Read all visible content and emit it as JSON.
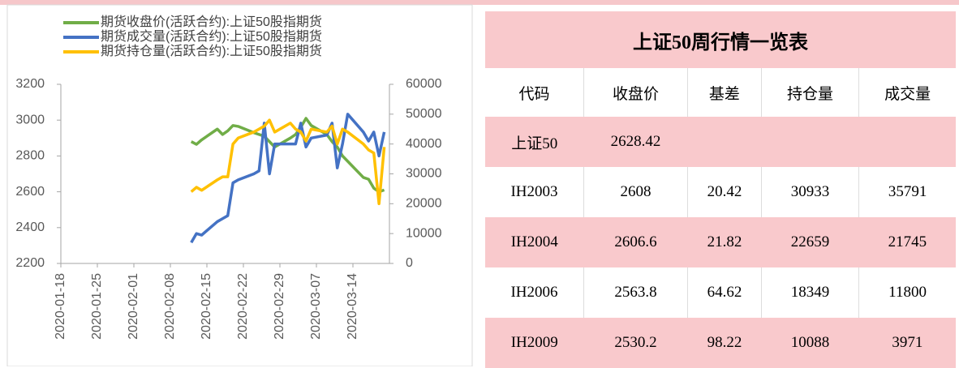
{
  "chart_data": {
    "type": "line",
    "x": [
      "2020-02-12",
      "2020-02-13",
      "2020-02-14",
      "2020-02-17",
      "2020-02-18",
      "2020-02-19",
      "2020-02-20",
      "2020-02-21",
      "2020-02-24",
      "2020-02-25",
      "2020-02-26",
      "2020-02-27",
      "2020-02-28",
      "2020-03-02",
      "2020-03-03",
      "2020-03-04",
      "2020-03-05",
      "2020-03-06",
      "2020-03-09",
      "2020-03-10",
      "2020-03-11",
      "2020-03-12",
      "2020-03-13",
      "2020-03-16",
      "2020-03-17",
      "2020-03-18",
      "2020-03-19",
      "2020-03-20"
    ],
    "series": [
      {
        "name": "期货收盘价(活跃合约):上证50股指期货",
        "color": "#70ad47",
        "axis": "y",
        "values": [
          2880,
          2865,
          2890,
          2950,
          2920,
          2940,
          2970,
          2965,
          2930,
          2920,
          2910,
          2880,
          2850,
          2900,
          2920,
          2960,
          3010,
          2970,
          2920,
          2880,
          2850,
          2800,
          2770,
          2680,
          2670,
          2620,
          2600,
          2610
        ]
      },
      {
        "name": "期货成交量(活跃合约):上证50股指期货",
        "color": "#4472c4",
        "axis": "y2",
        "values": [
          7000,
          10000,
          9500,
          14000,
          15000,
          16000,
          27000,
          28000,
          30000,
          31000,
          47000,
          30000,
          40000,
          40000,
          40000,
          47000,
          39000,
          42000,
          43000,
          47000,
          32000,
          40000,
          50000,
          44000,
          41000,
          44000,
          36000,
          44000
        ]
      },
      {
        "name": "期货持仓量(活跃合约):上证50股指期货",
        "color": "#ffc000",
        "axis": "y2",
        "values": [
          24000,
          25500,
          24500,
          28000,
          29000,
          29000,
          40000,
          42000,
          44000,
          45000,
          46000,
          48000,
          44000,
          47000,
          45000,
          44000,
          41000,
          45000,
          44000,
          46000,
          40000,
          45000,
          44000,
          40000,
          38000,
          37000,
          20000,
          39000
        ]
      }
    ],
    "xlim": [
      "2020-01-18",
      "2020-03-21"
    ],
    "xticks": [
      "2020-01-18",
      "2020-01-25",
      "2020-02-01",
      "2020-02-08",
      "2020-02-15",
      "2020-02-22",
      "2020-02-29",
      "2020-03-07",
      "2020-03-14"
    ],
    "ylim": [
      2200,
      3200
    ],
    "yticks": [
      2200,
      2400,
      2600,
      2800,
      3000,
      3200
    ],
    "y2lim": [
      0,
      60000
    ],
    "y2ticks": [
      0,
      10000,
      20000,
      30000,
      40000,
      50000,
      60000
    ],
    "legend": "top-left"
  },
  "table": {
    "title": "上证50周行情一览表",
    "header": [
      "代码",
      "收盘价",
      "基差",
      "持仓量",
      "成交量"
    ],
    "rows": [
      [
        "上证50",
        "2628.42"
      ],
      [
        "IH2003",
        "2608",
        "20.42",
        "30933",
        "35791"
      ],
      [
        "IH2004",
        "2606.6",
        "21.82",
        "22659",
        "21745"
      ],
      [
        "IH2006",
        "2563.8",
        "64.62",
        "18349",
        "11800"
      ],
      [
        "IH2009",
        "2530.2",
        "98.22",
        "10088",
        "3971"
      ]
    ]
  }
}
